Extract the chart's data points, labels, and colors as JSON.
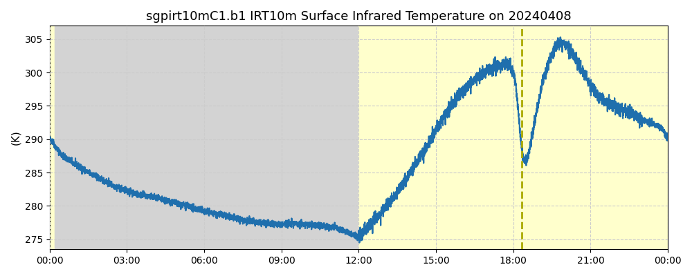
{
  "title": "sgpirt10mC1.b1 IRT10m Surface Infrared Temperature on 20240408",
  "ylabel": "(K)",
  "ylim": [
    273.5,
    307.0
  ],
  "yticks": [
    275,
    280,
    285,
    290,
    295,
    300,
    305
  ],
  "xtick_labels": [
    "00:00",
    "03:00",
    "06:00",
    "09:00",
    "12:00",
    "15:00",
    "18:00",
    "21:00",
    "00:00"
  ],
  "xtick_hours": [
    0,
    3,
    6,
    9,
    12,
    15,
    18,
    21,
    24
  ],
  "xlim": [
    0,
    24
  ],
  "daylight_end_morning": 0.2,
  "daylight_start_afternoon": 12.0,
  "solar_noon_line": 18.33,
  "line_color": "#1f6fad",
  "daylight_color": "#ffffcc",
  "night_color": "#d3d3d3",
  "dashed_color": "#aaaa00",
  "grid_color": "#cccccc",
  "title_fontsize": 13,
  "axis_fontsize": 11,
  "keypoints": [
    [
      0.0,
      290.0
    ],
    [
      0.15,
      289.5
    ],
    [
      0.2,
      289.0
    ],
    [
      0.5,
      287.5
    ],
    [
      1.0,
      286.2
    ],
    [
      1.5,
      285.0
    ],
    [
      2.0,
      284.0
    ],
    [
      2.5,
      283.0
    ],
    [
      3.0,
      282.2
    ],
    [
      3.5,
      281.7
    ],
    [
      4.0,
      281.3
    ],
    [
      4.5,
      280.8
    ],
    [
      5.0,
      280.3
    ],
    [
      5.5,
      279.8
    ],
    [
      6.0,
      279.2
    ],
    [
      6.5,
      278.8
    ],
    [
      7.0,
      278.3
    ],
    [
      7.5,
      277.9
    ],
    [
      8.0,
      277.5
    ],
    [
      8.5,
      277.4
    ],
    [
      9.0,
      277.2
    ],
    [
      9.5,
      277.4
    ],
    [
      10.0,
      277.2
    ],
    [
      10.5,
      277.0
    ],
    [
      11.0,
      276.8
    ],
    [
      11.3,
      276.5
    ],
    [
      11.6,
      276.0
    ],
    [
      11.8,
      275.6
    ],
    [
      11.95,
      275.3
    ],
    [
      12.0,
      275.5
    ],
    [
      12.2,
      276.2
    ],
    [
      12.5,
      277.5
    ],
    [
      13.0,
      279.5
    ],
    [
      13.5,
      282.0
    ],
    [
      14.0,
      285.0
    ],
    [
      14.5,
      288.0
    ],
    [
      15.0,
      291.5
    ],
    [
      15.5,
      294.5
    ],
    [
      16.0,
      297.0
    ],
    [
      16.5,
      299.0
    ],
    [
      17.0,
      300.2
    ],
    [
      17.3,
      300.8
    ],
    [
      17.5,
      301.0
    ],
    [
      17.7,
      301.2
    ],
    [
      17.85,
      301.0
    ],
    [
      18.0,
      300.0
    ],
    [
      18.1,
      298.0
    ],
    [
      18.2,
      294.0
    ],
    [
      18.3,
      289.5
    ],
    [
      18.38,
      287.2
    ],
    [
      18.45,
      286.8
    ],
    [
      18.55,
      287.5
    ],
    [
      18.65,
      289.0
    ],
    [
      18.8,
      292.0
    ],
    [
      19.0,
      296.0
    ],
    [
      19.2,
      299.5
    ],
    [
      19.4,
      302.0
    ],
    [
      19.6,
      303.5
    ],
    [
      19.8,
      304.5
    ],
    [
      20.0,
      304.3
    ],
    [
      20.15,
      303.8
    ],
    [
      20.3,
      303.0
    ],
    [
      20.5,
      301.5
    ],
    [
      20.8,
      299.5
    ],
    [
      21.0,
      298.0
    ],
    [
      21.3,
      296.5
    ],
    [
      21.6,
      295.5
    ],
    [
      21.9,
      295.0
    ],
    [
      22.2,
      294.5
    ],
    [
      22.5,
      294.0
    ],
    [
      22.8,
      293.5
    ],
    [
      23.0,
      293.0
    ],
    [
      23.3,
      292.5
    ],
    [
      23.6,
      292.0
    ],
    [
      23.8,
      291.5
    ],
    [
      24.0,
      290.0
    ]
  ]
}
